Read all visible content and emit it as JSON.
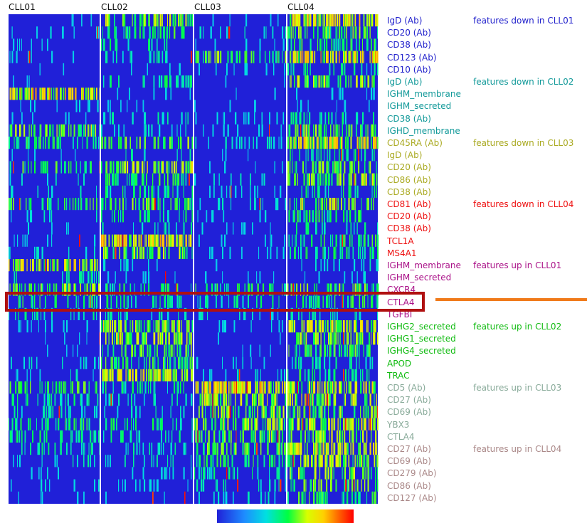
{
  "chart_data": {
    "type": "heatmap",
    "title": "",
    "columns": [
      "CLL01",
      "CLL02",
      "CLL03",
      "CLL04"
    ],
    "color_scale": [
      "#2020d8",
      "#1e8cff",
      "#00e0e0",
      "#00ff40",
      "#d8ff00",
      "#ffd000",
      "#ff5a00",
      "#ff0000"
    ],
    "rows": [
      {
        "label": "IgD (Ab)",
        "color": "#2222cc",
        "levels": [
          0.05,
          0.55,
          0.05,
          0.7
        ]
      },
      {
        "label": "CD20 (Ab)",
        "color": "#2222cc",
        "levels": [
          0.1,
          0.35,
          0.15,
          0.45
        ]
      },
      {
        "label": "CD38 (Ab)",
        "color": "#2222cc",
        "levels": [
          0.08,
          0.25,
          0.08,
          0.35
        ]
      },
      {
        "label": "CD123 (Ab)",
        "color": "#2222cc",
        "levels": [
          0.1,
          0.2,
          0.45,
          0.75
        ]
      },
      {
        "label": "CD10 (Ab)",
        "color": "#2222cc",
        "levels": [
          0.05,
          0.1,
          0.1,
          0.25
        ]
      },
      {
        "label": "IgD (Ab)",
        "color": "#119999",
        "levels": [
          0.05,
          0.3,
          0.05,
          0.55
        ]
      },
      {
        "label": "IGHM_membrane",
        "color": "#119999",
        "levels": [
          0.75,
          0.1,
          0.05,
          0.1
        ]
      },
      {
        "label": "IGHM_secreted",
        "color": "#119999",
        "levels": [
          0.1,
          0.05,
          0.05,
          0.08
        ]
      },
      {
        "label": "CD38 (Ab)",
        "color": "#119999",
        "levels": [
          0.05,
          0.2,
          0.1,
          0.25
        ]
      },
      {
        "label": "IGHD_membrane",
        "color": "#119999",
        "levels": [
          0.5,
          0.15,
          0.1,
          0.45
        ]
      },
      {
        "label": "CD45RA (Ab)",
        "color": "#aaaa22",
        "levels": [
          0.35,
          0.45,
          0.15,
          0.7
        ]
      },
      {
        "label": "IgD (Ab)",
        "color": "#aaaa22",
        "levels": [
          0.1,
          0.2,
          0.05,
          0.3
        ]
      },
      {
        "label": "CD20 (Ab)",
        "color": "#aaaa22",
        "levels": [
          0.4,
          0.6,
          0.1,
          0.45
        ]
      },
      {
        "label": "CD86 (Ab)",
        "color": "#aaaa22",
        "levels": [
          0.15,
          0.35,
          0.15,
          0.55
        ]
      },
      {
        "label": "CD38 (Ab)",
        "color": "#aaaa22",
        "levels": [
          0.15,
          0.3,
          0.1,
          0.3
        ]
      },
      {
        "label": "CD81 (Ab)",
        "color": "#ee1111",
        "levels": [
          0.4,
          0.45,
          0.15,
          0.55
        ]
      },
      {
        "label": "CD20 (Ab)",
        "color": "#ee1111",
        "levels": [
          0.15,
          0.3,
          0.1,
          0.35
        ]
      },
      {
        "label": "CD38 (Ab)",
        "color": "#ee1111",
        "levels": [
          0.1,
          0.2,
          0.1,
          0.25
        ]
      },
      {
        "label": "TCL1A",
        "color": "#ee1111",
        "levels": [
          0.1,
          0.75,
          0.1,
          0.35
        ]
      },
      {
        "label": "MS4A1",
        "color": "#ee1111",
        "levels": [
          0.15,
          0.5,
          0.1,
          0.3
        ]
      },
      {
        "label": "IGHM_membrane",
        "color": "#aa1188",
        "levels": [
          0.7,
          0.15,
          0.05,
          0.15
        ]
      },
      {
        "label": "IGHM_secreted",
        "color": "#aa1188",
        "levels": [
          0.25,
          0.1,
          0.05,
          0.1
        ]
      },
      {
        "label": "CXCR4",
        "color": "#aa1188",
        "levels": [
          0.5,
          0.35,
          0.35,
          0.45
        ]
      },
      {
        "label": "CTLA4",
        "color": "#aa1188",
        "levels": [
          0.35,
          0.3,
          0.25,
          0.35
        ]
      },
      {
        "label": "TGFBI",
        "color": "#aa1188",
        "levels": [
          0.25,
          0.2,
          0.15,
          0.2
        ]
      },
      {
        "label": "IGHG2_secreted",
        "color": "#11bb11",
        "levels": [
          0.1,
          0.6,
          0.1,
          0.65
        ]
      },
      {
        "label": "IGHG1_secreted",
        "color": "#11bb11",
        "levels": [
          0.05,
          0.55,
          0.05,
          0.5
        ]
      },
      {
        "label": "IGHG4_secreted",
        "color": "#11bb11",
        "levels": [
          0.05,
          0.45,
          0.05,
          0.4
        ]
      },
      {
        "label": "APOD",
        "color": "#11bb11",
        "levels": [
          0.15,
          0.4,
          0.1,
          0.2
        ]
      },
      {
        "label": "TRAC",
        "color": "#11bb11",
        "levels": [
          0.15,
          0.7,
          0.15,
          0.35
        ]
      },
      {
        "label": "CD5 (Ab)",
        "color": "#88aa99",
        "levels": [
          0.4,
          0.3,
          0.8,
          0.65
        ]
      },
      {
        "label": "CD27 (Ab)",
        "color": "#88aa99",
        "levels": [
          0.25,
          0.2,
          0.6,
          0.55
        ]
      },
      {
        "label": "CD69 (Ab)",
        "color": "#88aa99",
        "levels": [
          0.2,
          0.2,
          0.5,
          0.45
        ]
      },
      {
        "label": "YBX3",
        "color": "#88aa99",
        "levels": [
          0.35,
          0.3,
          0.55,
          0.6
        ]
      },
      {
        "label": "CTLA4",
        "color": "#88aa99",
        "levels": [
          0.3,
          0.25,
          0.45,
          0.55
        ]
      },
      {
        "label": "CD27 (Ab)",
        "color": "#aa8888",
        "levels": [
          0.25,
          0.2,
          0.45,
          0.7
        ]
      },
      {
        "label": "CD69 (Ab)",
        "color": "#aa8888",
        "levels": [
          0.2,
          0.2,
          0.35,
          0.6
        ]
      },
      {
        "label": "CD279 (Ab)",
        "color": "#aa8888",
        "levels": [
          0.1,
          0.1,
          0.25,
          0.5
        ]
      },
      {
        "label": "CD86 (Ab)",
        "color": "#aa8888",
        "levels": [
          0.1,
          0.1,
          0.2,
          0.45
        ]
      },
      {
        "label": "CD127 (Ab)",
        "color": "#aa8888",
        "levels": [
          0.08,
          0.08,
          0.15,
          0.4
        ]
      }
    ],
    "groups": [
      {
        "label": "features down in CLL01",
        "color": "#2222cc",
        "start_row": 0
      },
      {
        "label": "features down in CLL02",
        "color": "#119999",
        "start_row": 5
      },
      {
        "label": "features down in CLL03",
        "color": "#aaaa22",
        "start_row": 10
      },
      {
        "label": "features down in CLL04",
        "color": "#ee1111",
        "start_row": 15
      },
      {
        "label": "features up in CLL01",
        "color": "#aa1188",
        "start_row": 20
      },
      {
        "label": "features up in CLL02",
        "color": "#11bb11",
        "start_row": 25
      },
      {
        "label": "features up in CLL03",
        "color": "#88aa99",
        "start_row": 30
      },
      {
        "label": "features up in CLL04",
        "color": "#aa8888",
        "start_row": 35
      }
    ],
    "highlighted_row": 23,
    "legend": "bottom-center"
  }
}
